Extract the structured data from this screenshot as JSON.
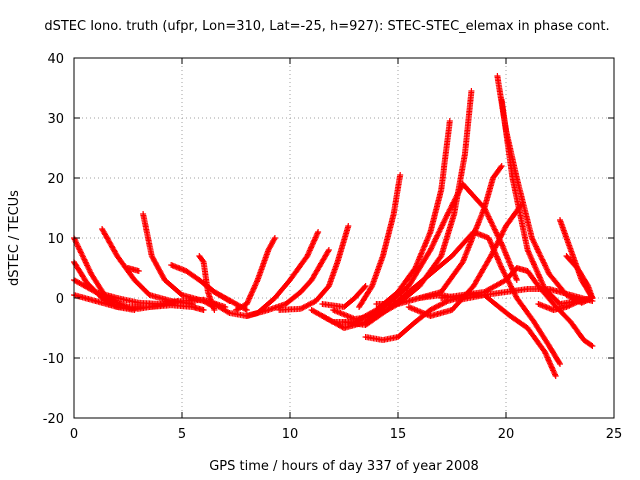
{
  "chart_data": {
    "type": "scatter",
    "title": "dSTEC Iono. truth (ufpr, Lon=310, Lat=-25, h=927): STEC-STEC_elemax in phase cont.",
    "xlabel": "GPS time / hours of day 337 of year 2008",
    "ylabel": "dSTEC  / TECUs",
    "xlim": [
      0,
      25
    ],
    "ylim": [
      -20,
      40
    ],
    "xticks": [
      0,
      5,
      10,
      15,
      20,
      25
    ],
    "yticks": [
      -20,
      -10,
      0,
      10,
      20,
      30,
      40
    ],
    "grid": true,
    "legend": "none",
    "color": "#ff0000",
    "marker": "plus",
    "series": [
      {
        "x": [
          0.0,
          0.8,
          1.5,
          2.5,
          3.5,
          4.5,
          5.5,
          6.0
        ],
        "y": [
          10,
          4,
          0,
          -1.5,
          -1.5,
          -1.2,
          -1.5,
          -2
        ]
      },
      {
        "x": [
          0.0,
          0.6,
          1.3,
          2.0,
          3.0,
          4.0,
          4.8
        ],
        "y": [
          6,
          2.5,
          0,
          -1.5,
          -1.8,
          -1.2,
          -0.5
        ]
      },
      {
        "x": [
          0.0,
          1.0,
          2.0,
          3.0,
          4.0,
          5.0,
          6.0,
          7.0
        ],
        "y": [
          3,
          1,
          0,
          -0.8,
          -1,
          -0.5,
          -0.3,
          -1.5
        ]
      },
      {
        "x": [
          0.0,
          1.0,
          2.0,
          2.8
        ],
        "y": [
          0.5,
          -0.5,
          -1.5,
          -2
        ]
      },
      {
        "x": [
          1.3,
          2.0,
          2.8,
          3.5,
          4.5,
          5.5
        ],
        "y": [
          11.5,
          7,
          3,
          0.5,
          -0.5,
          -1
        ]
      },
      {
        "x": [
          2.5,
          3.0
        ],
        "y": [
          5,
          4.5
        ]
      },
      {
        "x": [
          3.2,
          3.6,
          4.2,
          5.0,
          6.0,
          6.5
        ],
        "y": [
          14,
          7,
          3,
          0.5,
          -0.5,
          -1.5
        ]
      },
      {
        "x": [
          4.5,
          5.2,
          5.8,
          6.5,
          7.2
        ],
        "y": [
          5.5,
          4.5,
          3,
          1,
          -0.5
        ]
      },
      {
        "x": [
          5.8,
          6.0,
          6.2,
          6.5
        ],
        "y": [
          7,
          6,
          1,
          -2
        ]
      },
      {
        "x": [
          6.0,
          6.5,
          7.0,
          7.5,
          8.0
        ],
        "y": [
          2.5,
          1,
          0,
          -1,
          -2
        ]
      },
      {
        "x": [
          7.5,
          8.0,
          8.5,
          9.0,
          9.3
        ],
        "y": [
          -2,
          -1,
          3,
          8,
          10
        ]
      },
      {
        "x": [
          6.5,
          7.2,
          8.0,
          8.5,
          9.3,
          10.0,
          10.8,
          11.3
        ],
        "y": [
          -1,
          -2.5,
          -3,
          -2.5,
          0,
          3,
          7,
          11
        ]
      },
      {
        "x": [
          8.0,
          9.0,
          9.8,
          10.5,
          11.0,
          11.8
        ],
        "y": [
          -3,
          -2,
          -1,
          1,
          3,
          8
        ]
      },
      {
        "x": [
          9.5,
          10.5,
          11.2,
          11.8,
          12.2,
          12.7
        ],
        "y": [
          -2,
          -1.8,
          -0.5,
          2,
          6,
          12
        ]
      },
      {
        "x": [
          11.5,
          12.5,
          13.0,
          13.5
        ],
        "y": [
          -1,
          -1.5,
          0,
          2
        ]
      },
      {
        "x": [
          13.2,
          13.8,
          14.3,
          14.8,
          15.1
        ],
        "y": [
          -1.5,
          2,
          7,
          14,
          20.5
        ]
      },
      {
        "x": [
          11.0,
          12.0,
          13.0,
          14.0,
          15.0,
          15.8,
          16.5,
          17.0,
          17.4
        ],
        "y": [
          -2,
          -4,
          -4,
          -2,
          1,
          5,
          11,
          18,
          29.5
        ]
      },
      {
        "x": [
          12.0,
          13.0,
          14.0,
          15.0,
          16.0,
          17.0,
          17.6,
          18.1,
          18.4
        ],
        "y": [
          -2,
          -3.5,
          -3,
          -1,
          2,
          7,
          14,
          24,
          34.5
        ]
      },
      {
        "x": [
          13.5,
          14.3,
          15.0,
          15.8,
          16.5,
          17.3,
          18.3,
          19.0,
          19.5,
          20.2,
          21.0,
          21.8,
          22.3
        ],
        "y": [
          -6.5,
          -7,
          -6.5,
          -4,
          -2,
          -0.5,
          0.5,
          0.5,
          -1,
          -3,
          -5,
          -9,
          -13
        ]
      },
      {
        "x": [
          11.5,
          12.5,
          13.5,
          14.5,
          15.5,
          16.5,
          17.3,
          18.0,
          19.0,
          19.8,
          20.5
        ],
        "y": [
          -3,
          -5,
          -4,
          -1,
          2,
          8,
          14,
          19,
          15,
          9,
          3
        ]
      },
      {
        "x": [
          12.5,
          13.5,
          14.5,
          15.5,
          16.5,
          17.5,
          18.5,
          19.2,
          19.8,
          20.5,
          21.3,
          22.0,
          22.5
        ],
        "y": [
          -4,
          -4.5,
          -2,
          1,
          4,
          7,
          11,
          10,
          5,
          0,
          -4,
          -8,
          -11
        ]
      },
      {
        "x": [
          14.0,
          15.0,
          16.0,
          17.0,
          18.0,
          19.0,
          19.4,
          19.8
        ],
        "y": [
          -1,
          -1,
          0,
          1,
          6,
          15,
          20,
          22
        ]
      },
      {
        "x": [
          15.5,
          16.5,
          17.5,
          18.5,
          19.3,
          20.0,
          20.7
        ],
        "y": [
          -1.5,
          -3,
          -2,
          2,
          7,
          12,
          15.5
        ]
      },
      {
        "x": [
          19.6,
          20.0,
          20.5,
          21.2,
          22.0,
          22.8,
          23.5,
          24.0
        ],
        "y": [
          37,
          28,
          20,
          10,
          4,
          0.5,
          -0.8,
          0
        ]
      },
      {
        "x": [
          19.8,
          20.3,
          21.0,
          21.8,
          22.5,
          23.3,
          24.0
        ],
        "y": [
          33,
          20,
          8,
          1.5,
          -1,
          -0.5,
          0
        ]
      },
      {
        "x": [
          17.0,
          18.0,
          19.0,
          20.0,
          20.5,
          21.0,
          21.5,
          22.2,
          23.0,
          23.6,
          24.0
        ],
        "y": [
          0,
          0.5,
          1,
          3,
          5,
          4.5,
          2,
          -1,
          -4,
          -7,
          -8
        ]
      },
      {
        "x": [
          16.0,
          17.0,
          18.0,
          19.0,
          20.0,
          21.0,
          22.0,
          23.0,
          24.0
        ],
        "y": [
          0,
          0.5,
          -0.2,
          0.5,
          1,
          1.5,
          1.5,
          0.5,
          -0.5
        ]
      },
      {
        "x": [
          22.5,
          23.0,
          23.5,
          24.0
        ],
        "y": [
          13,
          8,
          3,
          0
        ]
      },
      {
        "x": [
          22.8,
          23.3,
          23.8,
          24.0
        ],
        "y": [
          7,
          5,
          2,
          0
        ]
      },
      {
        "x": [
          21.5,
          22.2,
          22.8,
          23.4,
          24.0
        ],
        "y": [
          -1,
          -2,
          -1.5,
          -0.5,
          0
        ]
      }
    ]
  }
}
